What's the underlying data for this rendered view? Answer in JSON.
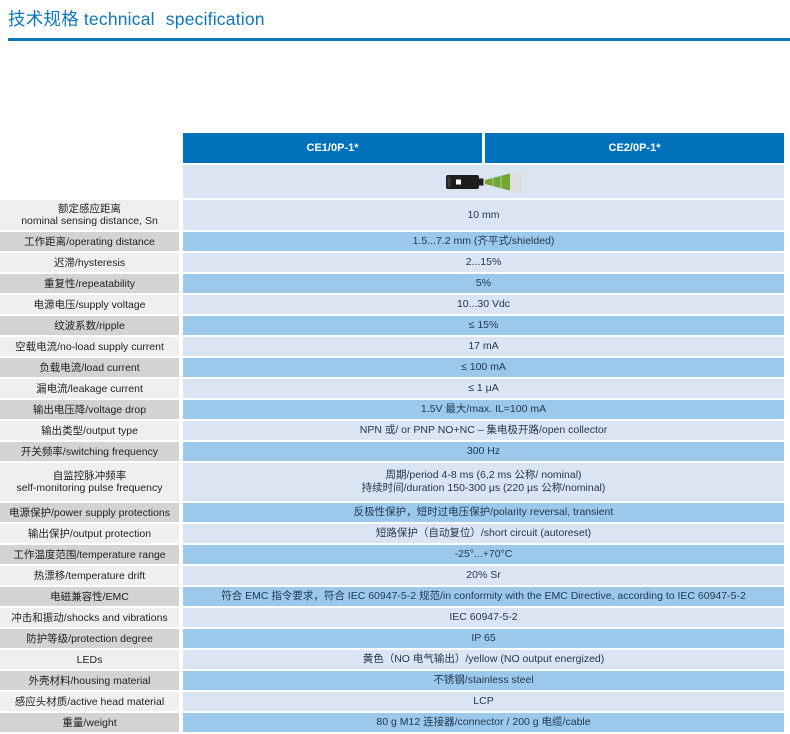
{
  "page": {
    "title_zh": "技术规格",
    "title_en": "technical specification"
  },
  "colors": {
    "accent_blue": "#0d76bd",
    "header_blue": "#0072bc",
    "row_light_blue": "#dbe4f2",
    "row_medium_blue": "#9cc9eb",
    "label_light_gray": "#efefef",
    "label_dark_gray": "#d3d3d3",
    "beam_green": "#72a636",
    "beam_gray": "#dedede"
  },
  "table": {
    "columns": [
      "CE1/0P-1*",
      "CE2/0P-1*"
    ],
    "product_image": "inductive-sensor-with-beam-icon",
    "rows": [
      {
        "label": [
          "额定感应距离",
          "nominal sensing distance, Sn"
        ],
        "value": [
          "10 mm"
        ]
      },
      {
        "label": [
          "工作距离/operating distance"
        ],
        "value": [
          "1.5...7.2 mm (齐平式/shielded)"
        ]
      },
      {
        "label": [
          "迟滞/hysteresis"
        ],
        "value": [
          "2...15%"
        ]
      },
      {
        "label": [
          "重复性/repeatability"
        ],
        "value": [
          "5%"
        ]
      },
      {
        "label": [
          "电源电压/supply voltage"
        ],
        "value": [
          "10...30 Vdc"
        ]
      },
      {
        "label": [
          "纹波系数/ripple"
        ],
        "value": [
          "≤ 15%"
        ]
      },
      {
        "label": [
          "空载电流/no-load supply current"
        ],
        "value": [
          "17 mA"
        ]
      },
      {
        "label": [
          "负载电流/load current"
        ],
        "value": [
          "≤ 100 mA"
        ]
      },
      {
        "label": [
          "漏电流/leakage current"
        ],
        "value": [
          "≤ 1 μA"
        ]
      },
      {
        "label": [
          "输出电压降/voltage drop"
        ],
        "value": [
          "1.5V 最大/max. IL=100 mA"
        ]
      },
      {
        "label": [
          "输出类型/output type"
        ],
        "value": [
          "NPN 或/ or PNP NO+NC – 集电极开路/open collector"
        ]
      },
      {
        "label": [
          "开关频率/switching frequency"
        ],
        "value": [
          "300 Hz"
        ]
      },
      {
        "label": [
          "自监控脉冲频率",
          "self-monitoring pulse frequency"
        ],
        "value": [
          "周期/period 4-8 ms (6,2 ms 公称/ nominal)",
          "持续时间/duration 150-300 μs (220 μs 公称/nominal)"
        ]
      },
      {
        "label": [
          "电源保护/power supply protections"
        ],
        "value": [
          "反极性保护，短时过电压保护/polarity reversal, transient"
        ]
      },
      {
        "label": [
          "输出保护/output protection"
        ],
        "value": [
          "短路保护（自动复位）/short circuit (autoreset)"
        ]
      },
      {
        "label": [
          "工作温度范围/temperature range"
        ],
        "value": [
          "-25°...+70°C"
        ]
      },
      {
        "label": [
          "热漂移/temperature drift"
        ],
        "value": [
          "20% Sr"
        ]
      },
      {
        "label": [
          "电磁兼容性/EMC"
        ],
        "value": [
          "符合 EMC 指令要求，符合 IEC 60947-5-2 规范/in conformity with the EMC Directive, according to IEC 60947-5-2"
        ]
      },
      {
        "label": [
          "冲击和振动/shocks and vibrations"
        ],
        "value": [
          "IEC 60947-5-2"
        ]
      },
      {
        "label": [
          "防护等级/protection degree"
        ],
        "value": [
          "IP 65"
        ]
      },
      {
        "label": [
          "LEDs"
        ],
        "value": [
          "黄色（NO 电气输出）/yellow (NO output energized)"
        ]
      },
      {
        "label": [
          "外壳材料/housing material"
        ],
        "value": [
          "不锈钢/stainless steel"
        ]
      },
      {
        "label": [
          "感应头材质/active head material"
        ],
        "value": [
          "LCP"
        ]
      },
      {
        "label": [
          "重量/weight"
        ],
        "value": [
          "80 g M12 连接器/connector / 200 g 电缆/cable"
        ]
      }
    ]
  }
}
